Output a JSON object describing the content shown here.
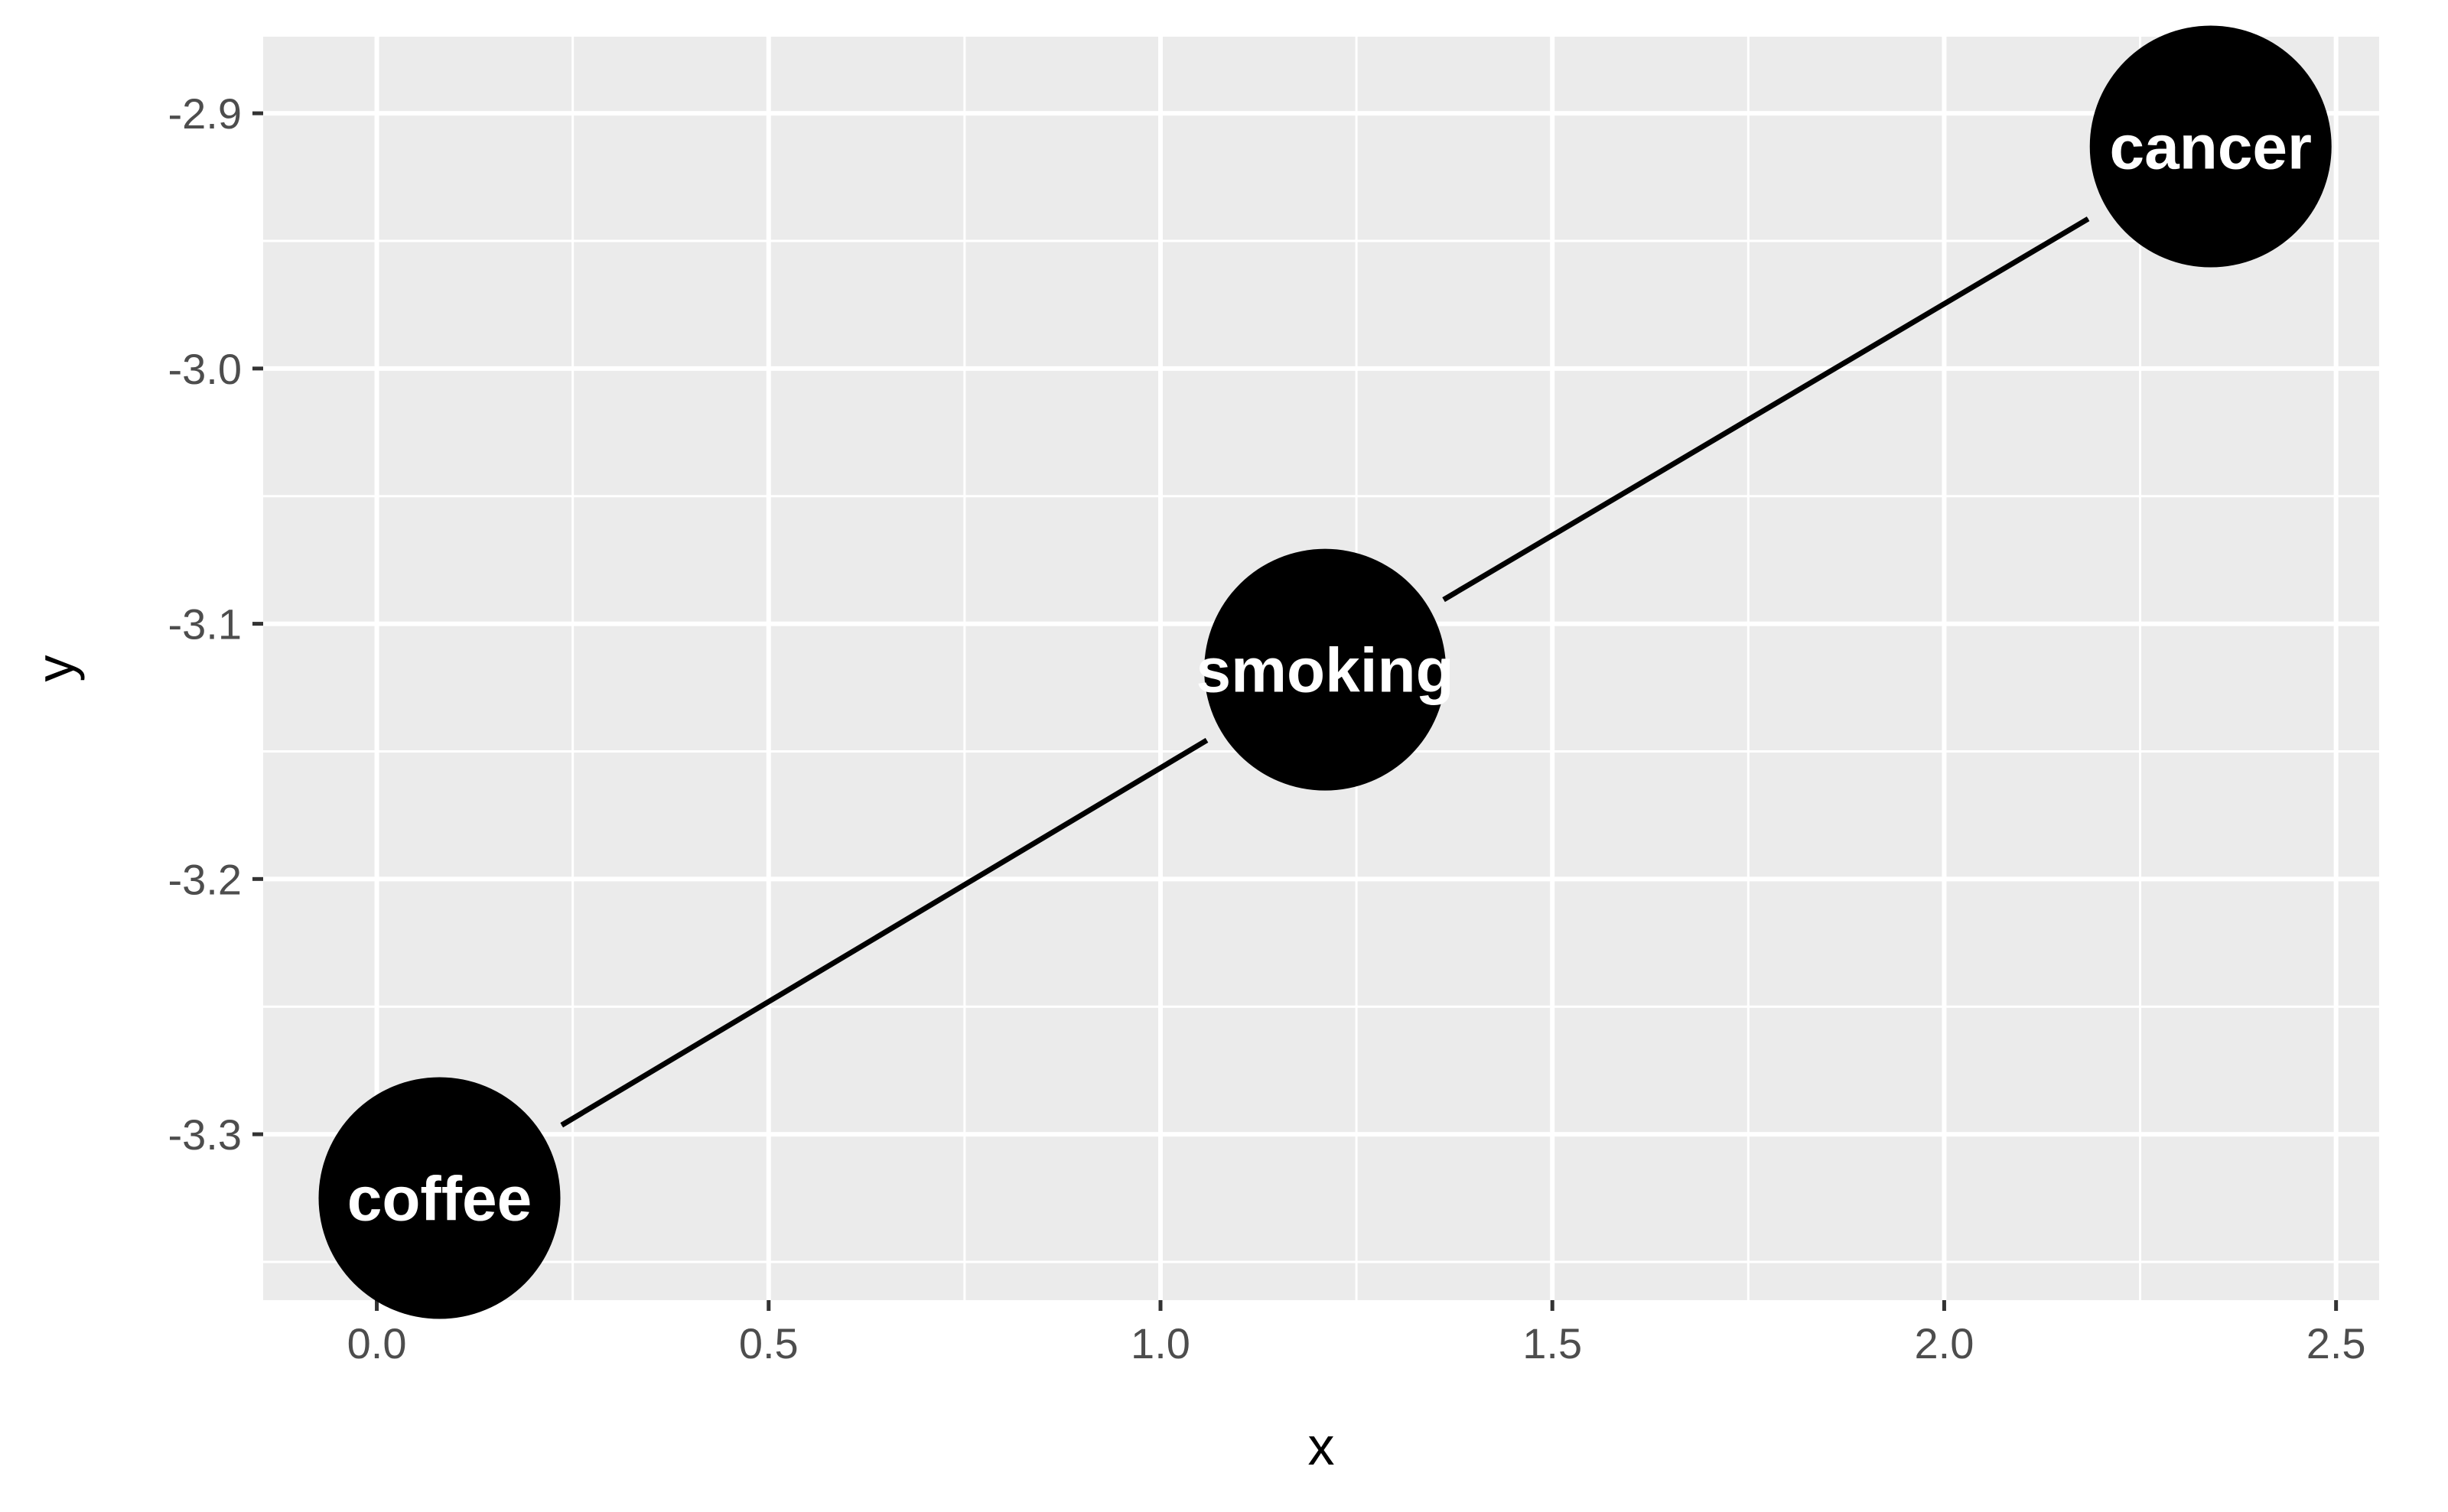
{
  "chart_data": {
    "type": "scatter",
    "title": "",
    "xlabel": "x",
    "ylabel": "y",
    "xlim": [
      -0.145,
      2.555
    ],
    "ylim": [
      -3.365,
      -2.87
    ],
    "x_ticks": [
      {
        "value": 0.0,
        "label": "0.0"
      },
      {
        "value": 0.5,
        "label": "0.5"
      },
      {
        "value": 1.0,
        "label": "1.0"
      },
      {
        "value": 1.5,
        "label": "1.5"
      },
      {
        "value": 2.0,
        "label": "2.0"
      },
      {
        "value": 2.5,
        "label": "2.5"
      }
    ],
    "y_ticks": [
      {
        "value": -2.9,
        "label": "-2.9"
      },
      {
        "value": -3.0,
        "label": "-3.0"
      },
      {
        "value": -3.1,
        "label": "-3.1"
      },
      {
        "value": -3.2,
        "label": "-3.2"
      },
      {
        "value": -3.3,
        "label": "-3.3"
      }
    ],
    "x_minor": [
      0.25,
      0.75,
      1.25,
      1.75,
      2.25
    ],
    "y_minor": [
      -2.95,
      -3.05,
      -3.15,
      -3.25,
      -3.35
    ],
    "grid": true,
    "colors": {
      "panel": "#ebebeb",
      "grid": "#ffffff",
      "node": "#000000",
      "node_text": "#ffffff",
      "edge": "#000000"
    },
    "nodes": [
      {
        "id": "coffee",
        "label": "coffee",
        "x": 0.08,
        "y": -3.325
      },
      {
        "id": "smoking",
        "label": "smoking",
        "x": 1.21,
        "y": -3.118
      },
      {
        "id": "cancer",
        "label": "cancer",
        "x": 2.34,
        "y": -2.913
      }
    ],
    "edges": [
      {
        "from": "smoking",
        "to": "coffee"
      },
      {
        "from": "smoking",
        "to": "cancer"
      }
    ]
  }
}
